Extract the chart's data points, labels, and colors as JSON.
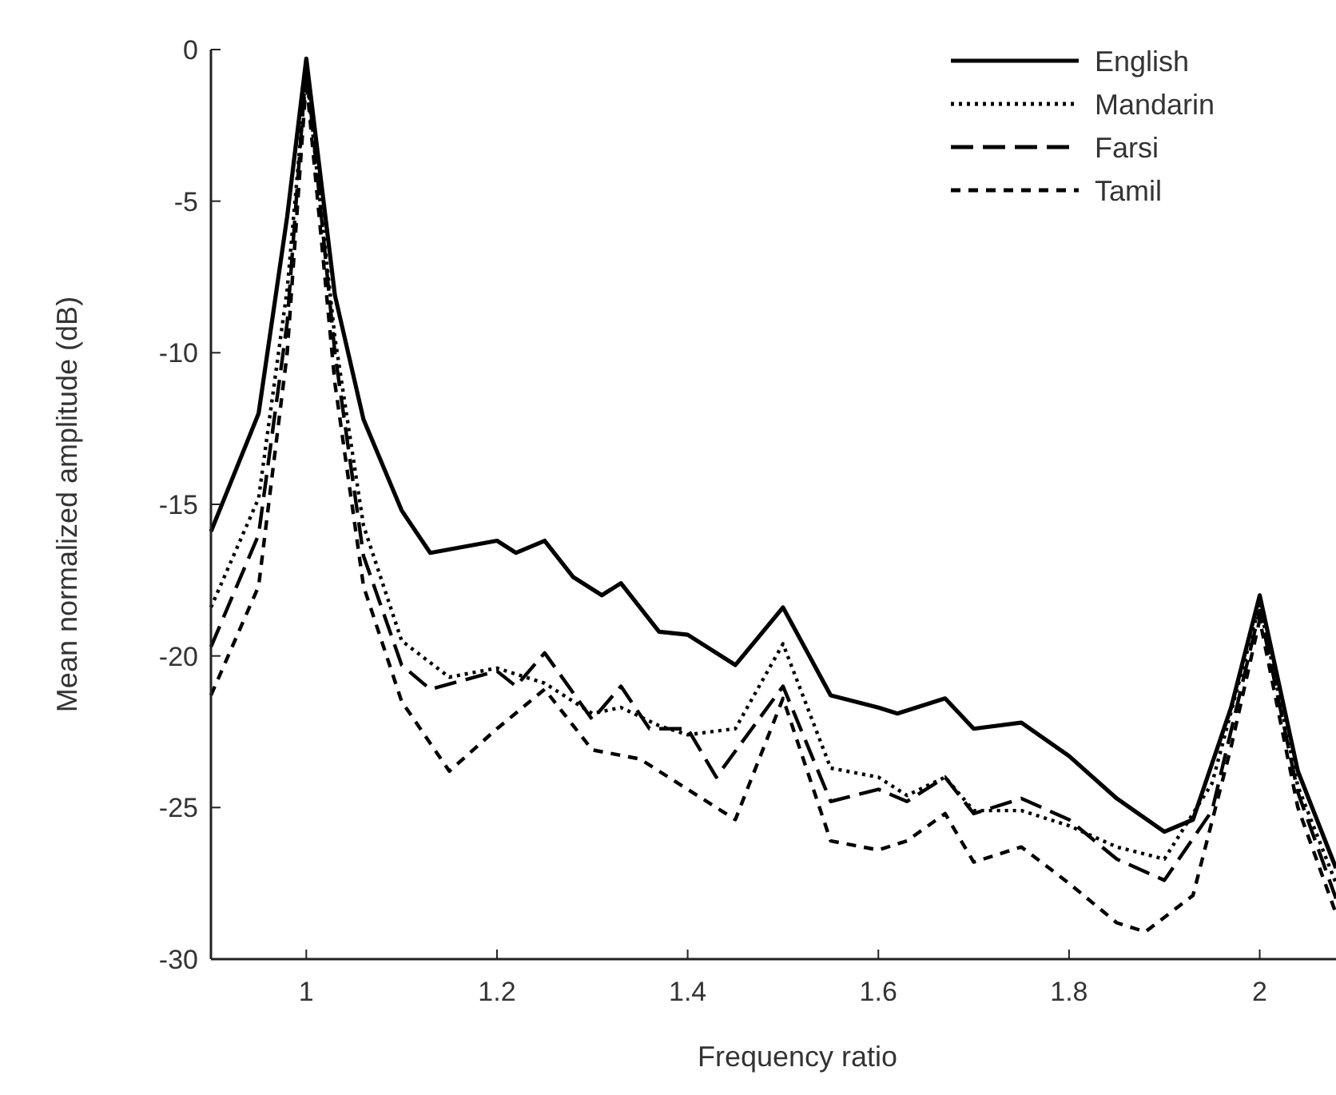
{
  "chart_data": {
    "type": "line",
    "xlabel": "Frequency ratio",
    "ylabel": "Mean normalized amplitude (dB)",
    "xlim": [
      0.9,
      2.08
    ],
    "xticks": [
      1,
      1.2,
      1.4,
      1.6,
      1.8,
      2
    ],
    "ylim": [
      -30,
      0
    ],
    "yticks": [
      0,
      -5,
      -10,
      -15,
      -20,
      -25,
      -30
    ],
    "grid": false,
    "legend": "top right",
    "marker": "none",
    "series": [
      {
        "name": "English",
        "color": "#000000",
        "line_style": "solid",
        "x": [
          0.9,
          0.95,
          0.98,
          1.0,
          1.03,
          1.06,
          1.1,
          1.13,
          1.2,
          1.22,
          1.25,
          1.28,
          1.31,
          1.33,
          1.37,
          1.4,
          1.45,
          1.5,
          1.55,
          1.6,
          1.62,
          1.67,
          1.7,
          1.75,
          1.8,
          1.85,
          1.9,
          1.93,
          1.97,
          2.0,
          2.04,
          2.08
        ],
        "values": [
          -15.9,
          -12.0,
          -5.5,
          -0.3,
          -8.1,
          -12.2,
          -15.2,
          -16.6,
          -16.2,
          -16.6,
          -16.2,
          -17.4,
          -18.0,
          -17.6,
          -19.2,
          -19.3,
          -20.3,
          -18.4,
          -21.3,
          -21.7,
          -21.9,
          -21.4,
          -22.4,
          -22.2,
          -23.3,
          -24.7,
          -25.8,
          -25.4,
          -21.7,
          -18.0,
          -23.8,
          -27.0
        ]
      },
      {
        "name": "Mandarin",
        "color": "#000000",
        "line_style": "dotted",
        "x": [
          0.9,
          0.95,
          0.98,
          1.0,
          1.03,
          1.06,
          1.1,
          1.15,
          1.2,
          1.25,
          1.3,
          1.33,
          1.37,
          1.4,
          1.45,
          1.5,
          1.55,
          1.6,
          1.63,
          1.67,
          1.7,
          1.75,
          1.8,
          1.85,
          1.9,
          1.95,
          2.0,
          2.04,
          2.08
        ],
        "values": [
          -18.4,
          -14.8,
          -7.9,
          -0.8,
          -9.5,
          -15.7,
          -19.5,
          -20.7,
          -20.4,
          -20.9,
          -21.9,
          -21.7,
          -22.3,
          -22.6,
          -22.4,
          -19.6,
          -23.7,
          -24.0,
          -24.6,
          -24.0,
          -25.1,
          -25.1,
          -25.6,
          -26.3,
          -26.7,
          -24.2,
          -18.3,
          -24.3,
          -27.5
        ]
      },
      {
        "name": "Farsi",
        "color": "#000000",
        "line_style": "dashed",
        "x": [
          0.9,
          0.95,
          0.98,
          1.0,
          1.03,
          1.06,
          1.1,
          1.13,
          1.2,
          1.22,
          1.25,
          1.3,
          1.33,
          1.36,
          1.4,
          1.43,
          1.5,
          1.55,
          1.6,
          1.63,
          1.67,
          1.7,
          1.75,
          1.8,
          1.85,
          1.9,
          1.95,
          2.0,
          2.04,
          2.08
        ],
        "values": [
          -19.7,
          -16.0,
          -9.0,
          -0.5,
          -10.0,
          -16.7,
          -20.3,
          -21.1,
          -20.5,
          -21.0,
          -19.9,
          -22.1,
          -21.0,
          -22.4,
          -22.4,
          -24.0,
          -21.0,
          -24.8,
          -24.4,
          -24.8,
          -24.0,
          -25.2,
          -24.7,
          -25.4,
          -26.7,
          -27.4,
          -25.1,
          -18.5,
          -24.5,
          -28.0
        ]
      },
      {
        "name": "Tamil",
        "color": "#000000",
        "line_style": "dashed",
        "x": [
          0.9,
          0.95,
          0.98,
          1.0,
          1.03,
          1.06,
          1.1,
          1.15,
          1.2,
          1.25,
          1.3,
          1.35,
          1.4,
          1.45,
          1.5,
          1.55,
          1.6,
          1.63,
          1.67,
          1.7,
          1.75,
          1.8,
          1.85,
          1.88,
          1.93,
          1.97,
          2.0,
          2.04,
          2.08
        ],
        "values": [
          -21.3,
          -17.7,
          -10.0,
          -1.0,
          -11.0,
          -17.7,
          -21.5,
          -23.8,
          -22.4,
          -21.1,
          -23.1,
          -23.4,
          -24.4,
          -25.4,
          -21.4,
          -26.1,
          -26.4,
          -26.1,
          -25.2,
          -26.8,
          -26.3,
          -27.5,
          -28.8,
          -29.1,
          -27.9,
          -23.0,
          -18.8,
          -25.0,
          -28.5
        ]
      }
    ]
  }
}
